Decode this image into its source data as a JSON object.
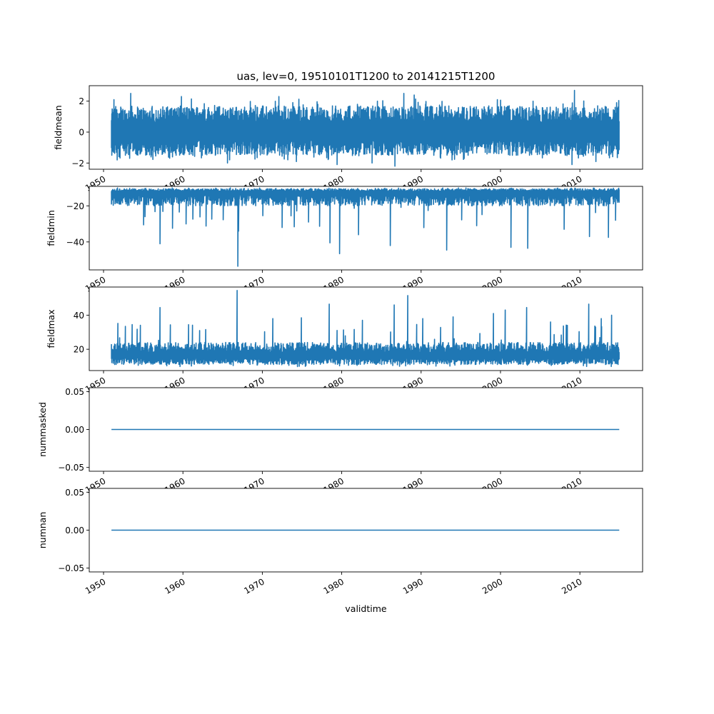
{
  "chart_data": {
    "type": "line",
    "title": "uas, lev=0, 19510101T1200 to 20141215T1200",
    "xlabel": "validtime",
    "x_range": [
      "1951-01-01T12:00",
      "2014-12-15T12:00"
    ],
    "xlim_years": [
      1948.2,
      2017.9
    ],
    "x_ticks": [
      "1950",
      "1960",
      "1970",
      "1980",
      "1990",
      "2000",
      "2010"
    ],
    "line_color": "#1f77b4",
    "grid": false,
    "panels": [
      {
        "ylabel": "fieldmean",
        "ylim": [
          -2.4,
          3.0
        ],
        "y_ticks": [
          {
            "v": 2,
            "label": "2"
          },
          {
            "v": 0,
            "label": "0"
          },
          {
            "v": -2,
            "label": "−2"
          }
        ],
        "series": {
          "mean_band": [
            -0.5,
            0.6
          ],
          "noise_band": [
            -1.5,
            1.7
          ],
          "spikes": [
            {
              "x": 1951.3,
              "y": 2.1
            },
            {
              "x": 1953.4,
              "y": 2.5
            },
            {
              "x": 1951.7,
              "y": -1.8
            },
            {
              "x": 1956.0,
              "y": -1.6
            },
            {
              "x": 1959.8,
              "y": 2.3
            },
            {
              "x": 1965.6,
              "y": -2.0
            },
            {
              "x": 1972.1,
              "y": 2.3
            },
            {
              "x": 1974.3,
              "y": -1.9
            },
            {
              "x": 1977.0,
              "y": 1.8
            },
            {
              "x": 1979.4,
              "y": -2.1
            },
            {
              "x": 1983.8,
              "y": -2.0
            },
            {
              "x": 1984.5,
              "y": 2.0
            },
            {
              "x": 1986.7,
              "y": -2.2
            },
            {
              "x": 1987.8,
              "y": 2.5
            },
            {
              "x": 1989.1,
              "y": 2.4
            },
            {
              "x": 1993.9,
              "y": -1.8
            },
            {
              "x": 1999.6,
              "y": 2.1
            },
            {
              "x": 2004.1,
              "y": 2.0
            },
            {
              "x": 2009.0,
              "y": -2.1
            },
            {
              "x": 2009.3,
              "y": 2.7
            },
            {
              "x": 2012.0,
              "y": -1.9
            },
            {
              "x": 2014.6,
              "y": 1.9
            }
          ]
        }
      },
      {
        "ylabel": "fieldmin",
        "ylim": [
          -55.5,
          -9.2
        ],
        "y_ticks": [
          {
            "v": -20,
            "label": "−20"
          },
          {
            "v": -40,
            "label": "−40"
          }
        ],
        "series": {
          "mean_band": [
            -14,
            -12
          ],
          "noise_band": [
            -20,
            -10.5
          ],
          "spikes": [
            {
              "x": 1957.1,
              "y": -41.0
            },
            {
              "x": 1966.9,
              "y": -53.5
            },
            {
              "x": 1967.0,
              "y": -34.0
            },
            {
              "x": 1972.5,
              "y": -32.0
            },
            {
              "x": 1978.5,
              "y": -40.5
            },
            {
              "x": 1979.7,
              "y": -46.5
            },
            {
              "x": 1982.1,
              "y": -36.0
            },
            {
              "x": 1986.1,
              "y": -42.0
            },
            {
              "x": 1993.2,
              "y": -44.5
            },
            {
              "x": 2001.3,
              "y": -43.0
            },
            {
              "x": 2003.4,
              "y": -43.5
            },
            {
              "x": 2011.2,
              "y": -37.0
            },
            {
              "x": 2013.6,
              "y": -37.5
            },
            {
              "x": 1960.4,
              "y": -30.0
            },
            {
              "x": 1955.2,
              "y": -26.0
            },
            {
              "x": 1975.8,
              "y": -29.0
            },
            {
              "x": 1997.0,
              "y": -31.0
            },
            {
              "x": 2008.0,
              "y": -33.0
            }
          ]
        }
      },
      {
        "ylabel": "fieldmax",
        "ylim": [
          7.5,
          56.5
        ],
        "y_ticks": [
          {
            "v": 20,
            "label": "20"
          },
          {
            "v": 40,
            "label": "40"
          }
        ],
        "series": {
          "mean_band": [
            15,
            18
          ],
          "noise_band": [
            11,
            24
          ],
          "spikes": [
            {
              "x": 1957.1,
              "y": 44.5
            },
            {
              "x": 1966.8,
              "y": 54.5
            },
            {
              "x": 1971.3,
              "y": 38.0
            },
            {
              "x": 1974.9,
              "y": 38.5
            },
            {
              "x": 1978.4,
              "y": 46.5
            },
            {
              "x": 1982.6,
              "y": 37.0
            },
            {
              "x": 1986.6,
              "y": 46.0
            },
            {
              "x": 1988.3,
              "y": 51.5
            },
            {
              "x": 1990.2,
              "y": 38.0
            },
            {
              "x": 1994.0,
              "y": 39.0
            },
            {
              "x": 1999.1,
              "y": 41.0
            },
            {
              "x": 2000.6,
              "y": 43.0
            },
            {
              "x": 2003.3,
              "y": 44.5
            },
            {
              "x": 2011.1,
              "y": 46.5
            },
            {
              "x": 2012.7,
              "y": 38.0
            },
            {
              "x": 2014.0,
              "y": 40.0
            },
            {
              "x": 1953.6,
              "y": 34.5
            },
            {
              "x": 1962.1,
              "y": 31.0
            },
            {
              "x": 2006.3,
              "y": 36.0
            },
            {
              "x": 2008.4,
              "y": 34.0
            }
          ]
        }
      },
      {
        "ylabel": "nummasked",
        "ylim": [
          -0.055,
          0.055
        ],
        "y_ticks": [
          {
            "v": 0.05,
            "label": "0.05"
          },
          {
            "v": 0.0,
            "label": "0.00"
          },
          {
            "v": -0.05,
            "label": "−0.05"
          }
        ],
        "series": {
          "constant": 0.0
        }
      },
      {
        "ylabel": "numnan",
        "ylim": [
          -0.055,
          0.055
        ],
        "y_ticks": [
          {
            "v": 0.05,
            "label": "0.05"
          },
          {
            "v": 0.0,
            "label": "0.00"
          },
          {
            "v": -0.05,
            "label": "−0.05"
          }
        ],
        "series": {
          "constant": 0.0
        }
      }
    ]
  }
}
